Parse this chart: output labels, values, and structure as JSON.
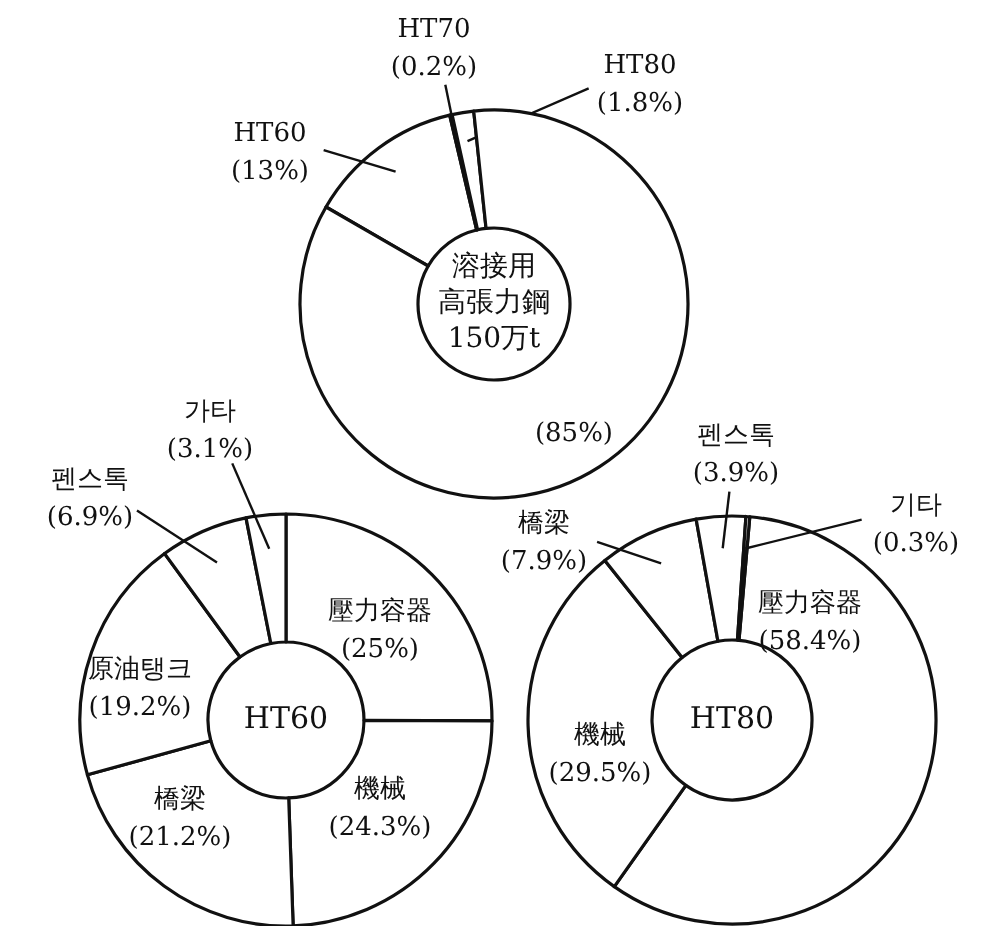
{
  "chart_data": [
    {
      "type": "donut",
      "title": "溶接用高張力鋼",
      "subtitle": "150万t",
      "categories": [
        "HT60",
        "HT70",
        "HT80",
        null
      ],
      "values": [
        13,
        0.2,
        1.8,
        85
      ],
      "value_labels": [
        "(13%)",
        "(0.2%)",
        "(1.8%)",
        "(85%)"
      ],
      "colors": [
        "#ffffff",
        "#ffffff",
        "#ffffff",
        "#ffffff"
      ]
    },
    {
      "type": "donut",
      "title": "HT60",
      "categories": [
        "壓力容器",
        "機械",
        "橋梁",
        "原油탱크",
        "펜스톡",
        "가타"
      ],
      "values": [
        25,
        24.3,
        21.2,
        19.2,
        6.9,
        3.1
      ],
      "value_labels": [
        "(25%)",
        "(24.3%)",
        "(21.2%)",
        "(19.2%)",
        "(6.9%)",
        "(3.1%)"
      ],
      "colors": [
        "#ffffff",
        "#ffffff",
        "#ffffff",
        "#ffffff",
        "#ffffff",
        "#ffffff"
      ]
    },
    {
      "type": "donut",
      "title": "HT80",
      "categories": [
        "壓力容器",
        "機械",
        "橋梁",
        "펜스톡",
        "기타"
      ],
      "values": [
        58.4,
        29.5,
        7.9,
        3.9,
        0.3
      ],
      "value_labels": [
        "(58.4%)",
        "(29.5%)",
        "(7.9%)",
        "(3.9%)",
        "(0.3%)"
      ],
      "colors": [
        "#ffffff",
        "#ffffff",
        "#ffffff",
        "#ffffff",
        "#ffffff"
      ]
    }
  ]
}
